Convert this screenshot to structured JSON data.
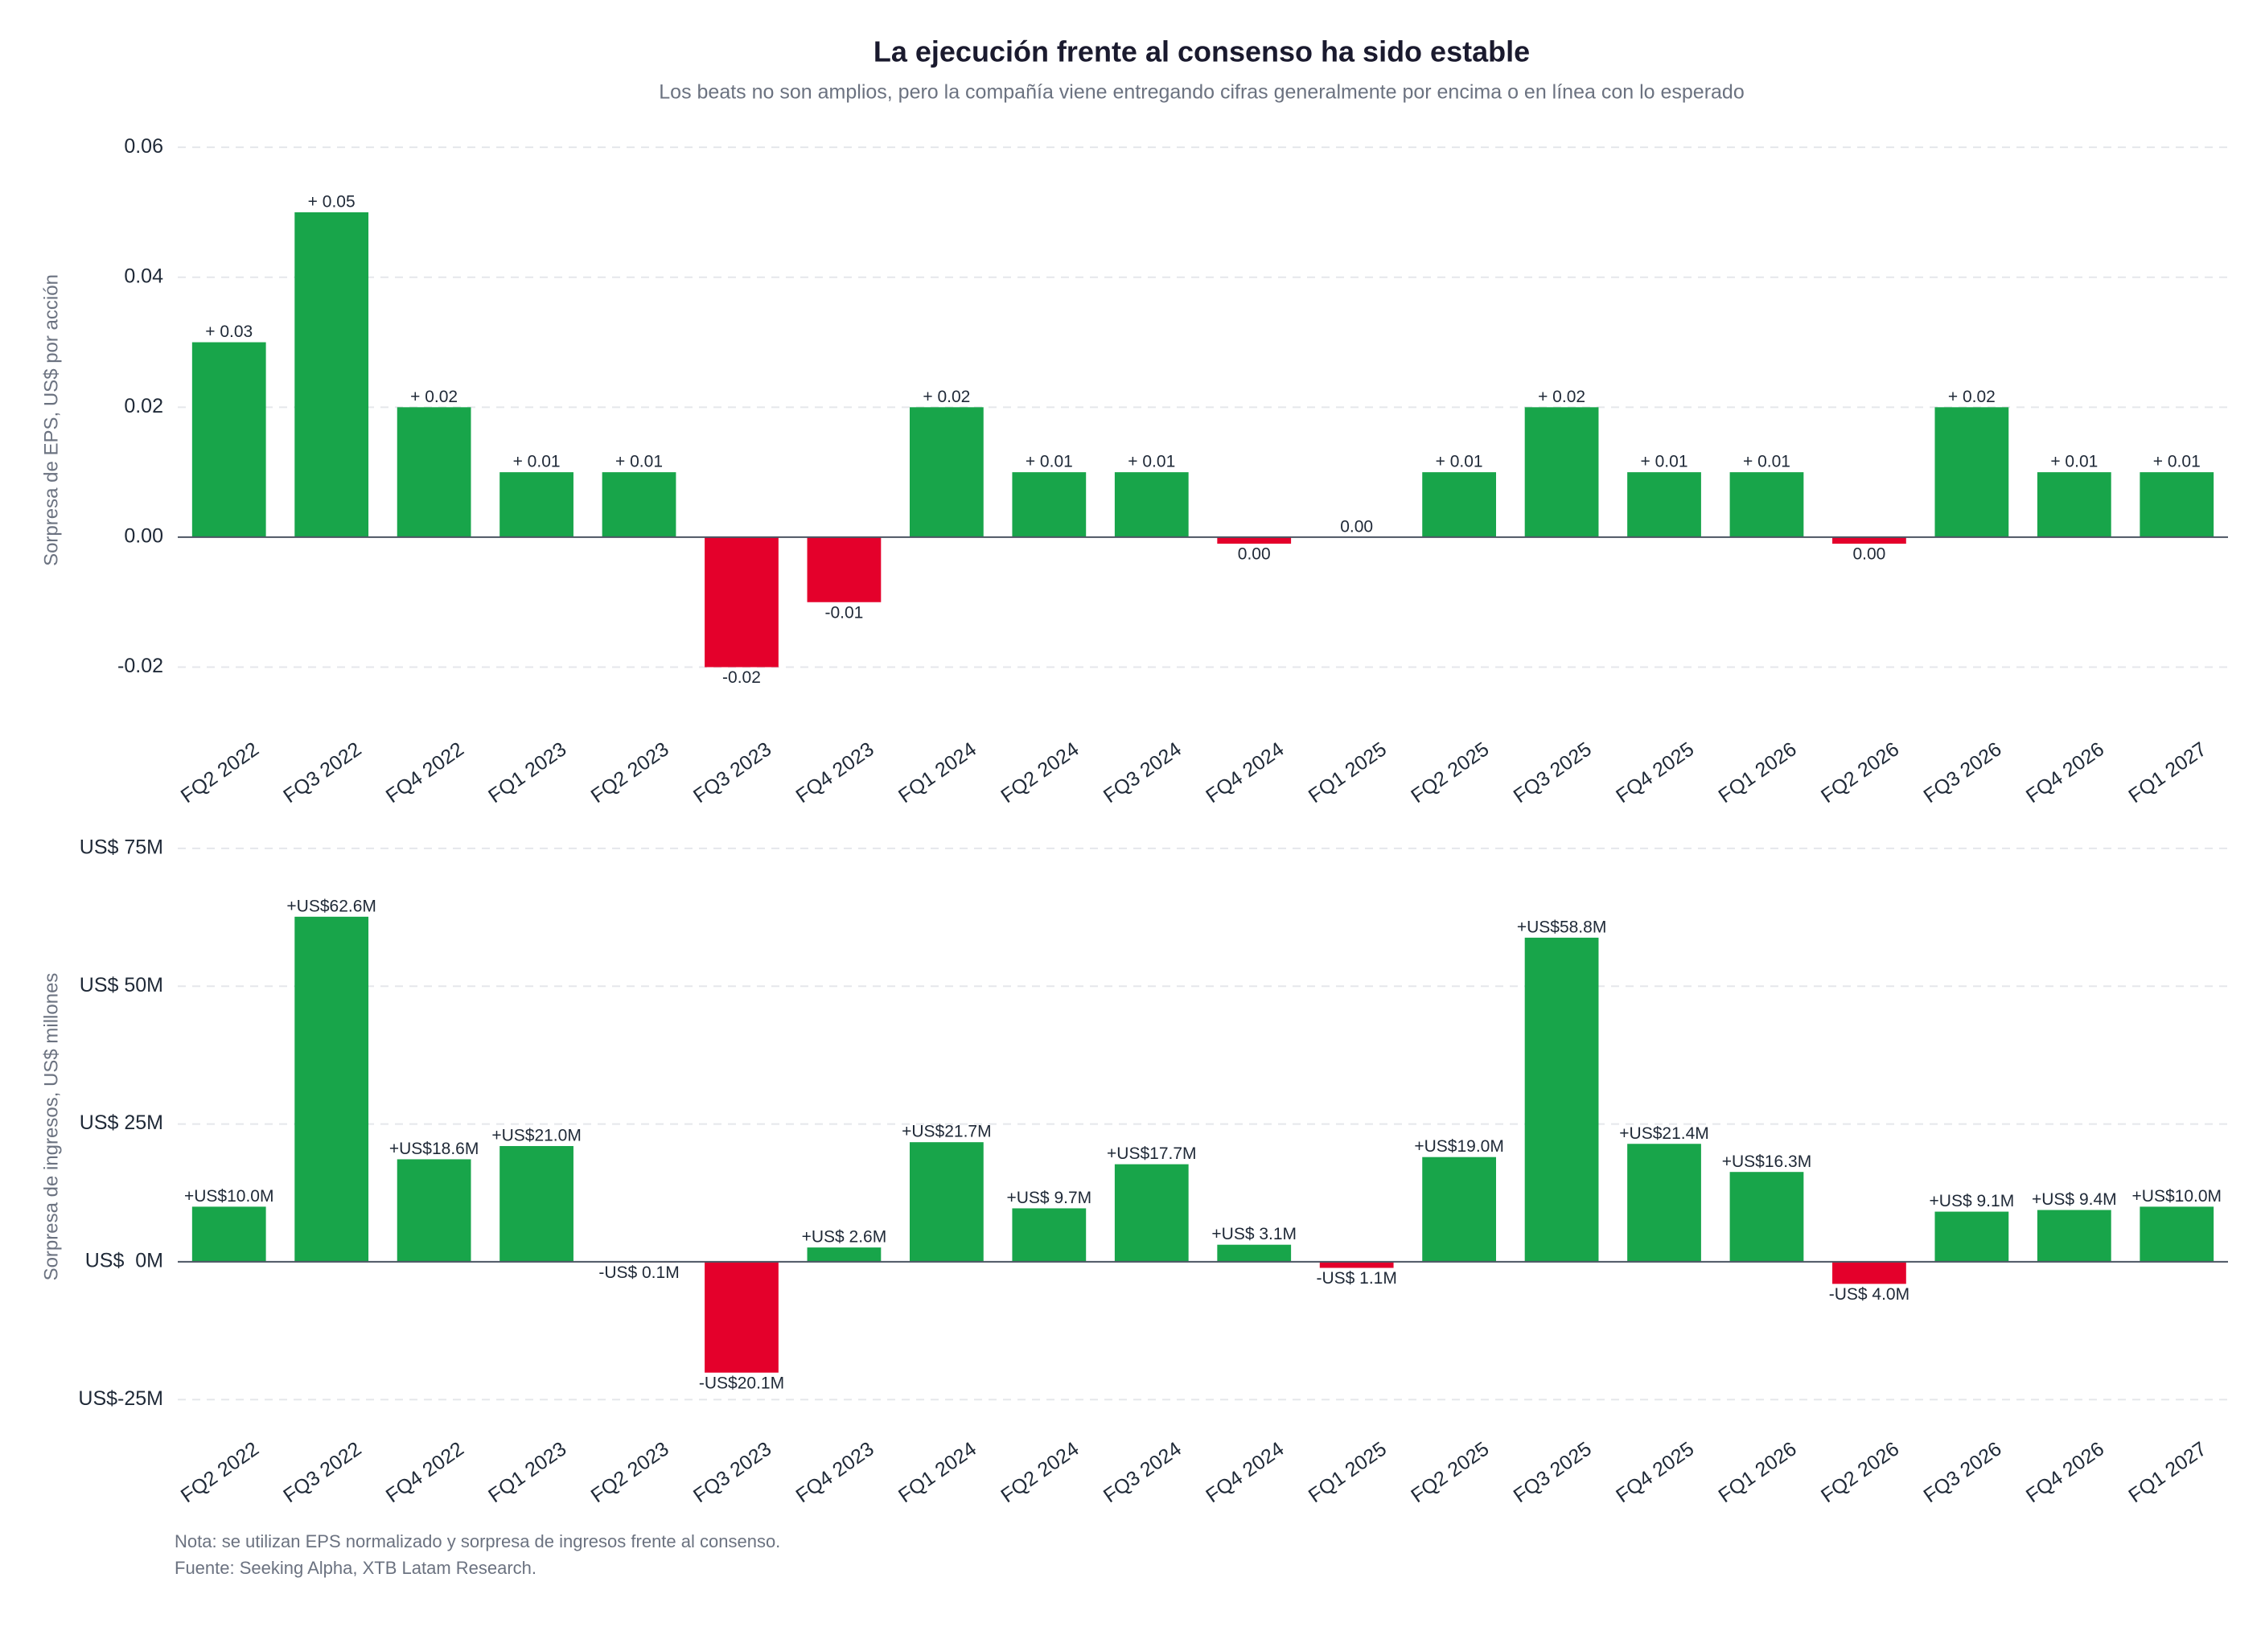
{
  "title": "La ejecución frente al consenso ha sido estable",
  "subtitle": "Los beats no son amplios, pero la compañía viene entregando cifras generalmente por encima o en línea con lo esperado",
  "footnotes": [
    "Nota: se utilizan EPS normalizado y sorpresa de ingresos frente al consenso.",
    "Fuente: Seeking Alpha, XTB Latam Research."
  ],
  "chart_data": [
    {
      "type": "bar",
      "y_label": "Sorpresa de EPS, US$ por acción",
      "categories": [
        "FQ2 2022",
        "FQ3 2022",
        "FQ4 2022",
        "FQ1 2023",
        "FQ2 2023",
        "FQ3 2023",
        "FQ4 2023",
        "FQ1 2024",
        "FQ2 2024",
        "FQ3 2024",
        "FQ4 2024",
        "FQ1 2025",
        "FQ2 2025",
        "FQ3 2025",
        "FQ4 2025",
        "FQ1 2026",
        "FQ2 2026",
        "FQ3 2026",
        "FQ4 2026",
        "FQ1 2027"
      ],
      "values": [
        0.03,
        0.05,
        0.02,
        0.01,
        0.01,
        -0.02,
        -0.01,
        0.02,
        0.01,
        0.01,
        -0.001,
        0,
        0.01,
        0.02,
        0.01,
        0.01,
        -0.001,
        0.02,
        0.01,
        0.01
      ],
      "value_labels": [
        "+ 0.03",
        "+ 0.05",
        "+ 0.02",
        "+ 0.01",
        "+ 0.01",
        "-0.02",
        "-0.01",
        "+ 0.02",
        "+ 0.01",
        "+ 0.01",
        "0.00",
        "0.00",
        "+ 0.01",
        "+ 0.02",
        "+ 0.01",
        "+ 0.01",
        "0.00",
        "+ 0.02",
        "+ 0.01",
        "+ 0.01"
      ],
      "colors": {
        "positive": "#18a54a",
        "negative": "#e4002b"
      },
      "ylim": [
        -0.026,
        0.062
      ],
      "yticks": [
        -0.02,
        {
          "value": 0,
          "label": "0.00"
        },
        0.02,
        0.04,
        0.06
      ],
      "grid": true
    },
    {
      "type": "bar",
      "y_label": "Sorpresa de ingresos, US$ millones",
      "categories": [
        "FQ2 2022",
        "FQ3 2022",
        "FQ4 2022",
        "FQ1 2023",
        "FQ2 2023",
        "FQ3 2023",
        "FQ4 2023",
        "FQ1 2024",
        "FQ2 2024",
        "FQ3 2024",
        "FQ4 2024",
        "FQ1 2025",
        "FQ2 2025",
        "FQ3 2025",
        "FQ4 2025",
        "FQ1 2026",
        "FQ2 2026",
        "FQ3 2026",
        "FQ4 2026",
        "FQ1 2027"
      ],
      "values": [
        10.0,
        62.6,
        18.6,
        21.0,
        -0.1,
        -20.1,
        2.6,
        21.7,
        9.7,
        17.7,
        3.1,
        -1.1,
        19.0,
        58.8,
        21.4,
        16.3,
        -4.0,
        9.1,
        9.4,
        10.0
      ],
      "value_labels": [
        "+US$10.0M",
        "+US$62.6M",
        "+US$18.6M",
        "+US$21.0M",
        "-US$ 0.1M",
        "-US$20.1M",
        "+US$ 2.6M",
        "+US$21.7M",
        "+US$ 9.7M",
        "+US$17.7M",
        "+US$ 3.1M",
        "-US$ 1.1M",
        "+US$19.0M",
        "+US$58.8M",
        "+US$21.4M",
        "+US$16.3M",
        "-US$ 4.0M",
        "+US$ 9.1M",
        "+US$ 9.4M",
        "+US$10.0M"
      ],
      "colors": {
        "positive": "#18a54a",
        "negative": "#e4002b"
      },
      "ylim": [
        -27,
        76
      ],
      "yticks": [
        {
          "value": -25,
          "label": "US$-25M"
        },
        {
          "value": 0,
          "label": "US$  0M"
        },
        {
          "value": 25,
          "label": "US$ 25M"
        },
        {
          "value": 50,
          "label": "US$ 50M"
        },
        {
          "value": 75,
          "label": "US$ 75M"
        }
      ],
      "grid": true
    }
  ]
}
